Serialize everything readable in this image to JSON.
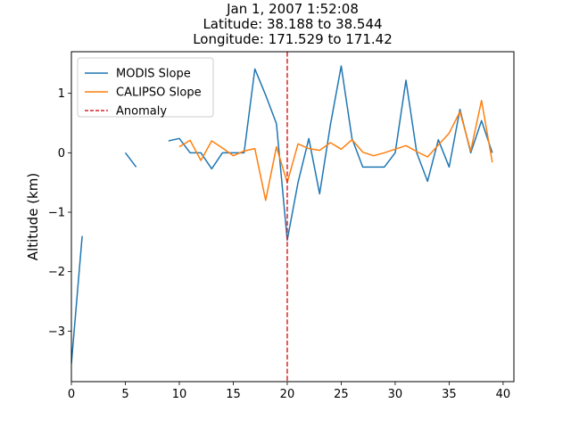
{
  "chart_data": {
    "type": "line",
    "title_lines": [
      "Jan 1, 2007 1:52:08",
      "Latitude: 38.188 to 38.544",
      "Longitude: 171.529 to 171.42"
    ],
    "xlabel": "",
    "ylabel": "Altitude (km)",
    "xlim": [
      0,
      41
    ],
    "ylim": [
      -3.85,
      1.7
    ],
    "xticks": [
      0,
      5,
      10,
      15,
      20,
      25,
      30,
      35,
      40
    ],
    "yticks": [
      -3,
      -2,
      -1,
      0,
      1
    ],
    "ytick_labels": [
      "−3",
      "−2",
      "−1",
      "0",
      "1"
    ],
    "grid": false,
    "legend_position": "top-left",
    "series": [
      {
        "name": "MODIS Slope",
        "color": "#1f77b4",
        "segments": [
          [
            [
              0,
              -3.55
            ],
            [
              1,
              -1.4
            ]
          ],
          [
            [
              5,
              0.0
            ],
            [
              6,
              -0.24
            ]
          ],
          [
            [
              9,
              0.2
            ],
            [
              10,
              0.24
            ],
            [
              11,
              0.0
            ],
            [
              12,
              0.0
            ],
            [
              13,
              -0.27
            ],
            [
              14,
              0.0
            ],
            [
              15,
              0.0
            ],
            [
              16,
              0.0
            ],
            [
              17,
              1.41
            ],
            [
              18,
              0.97
            ],
            [
              19,
              0.49
            ],
            [
              20,
              -1.47
            ],
            [
              21,
              -0.5
            ],
            [
              22,
              0.24
            ],
            [
              23,
              -0.69
            ],
            [
              24,
              0.47
            ],
            [
              25,
              1.46
            ],
            [
              26,
              0.24
            ],
            [
              27,
              -0.24
            ],
            [
              28,
              -0.24
            ],
            [
              29,
              -0.24
            ],
            [
              30,
              0.0
            ],
            [
              31,
              1.22
            ],
            [
              32,
              0.0
            ],
            [
              33,
              -0.48
            ],
            [
              34,
              0.22
            ],
            [
              35,
              -0.24
            ],
            [
              36,
              0.73
            ],
            [
              37,
              0.0
            ],
            [
              38,
              0.54
            ],
            [
              39,
              0.0
            ]
          ]
        ]
      },
      {
        "name": "CALIPSO Slope",
        "color": "#ff7f0e",
        "segments": [
          [
            [
              10,
              0.1
            ],
            [
              11,
              0.21
            ],
            [
              12,
              -0.13
            ],
            [
              13,
              0.2
            ],
            [
              14,
              0.08
            ],
            [
              15,
              -0.05
            ],
            [
              16,
              0.03
            ],
            [
              17,
              0.07
            ],
            [
              18,
              -0.8
            ],
            [
              19,
              0.1
            ],
            [
              20,
              -0.5
            ],
            [
              21,
              0.15
            ],
            [
              22,
              0.07
            ],
            [
              23,
              0.04
            ],
            [
              24,
              0.17
            ],
            [
              25,
              0.06
            ],
            [
              26,
              0.22
            ],
            [
              27,
              0.01
            ],
            [
              28,
              -0.05
            ],
            [
              29,
              0.0
            ],
            [
              30,
              0.06
            ],
            [
              31,
              0.12
            ],
            [
              32,
              0.02
            ],
            [
              33,
              -0.07
            ],
            [
              34,
              0.13
            ],
            [
              35,
              0.33
            ],
            [
              36,
              0.69
            ],
            [
              37,
              0.03
            ],
            [
              38,
              0.88
            ],
            [
              39,
              -0.16
            ]
          ]
        ]
      }
    ],
    "annotations": [
      {
        "name": "Anomaly",
        "type": "vline",
        "x": 20,
        "color": "#d62728",
        "style": "dashed"
      }
    ]
  }
}
